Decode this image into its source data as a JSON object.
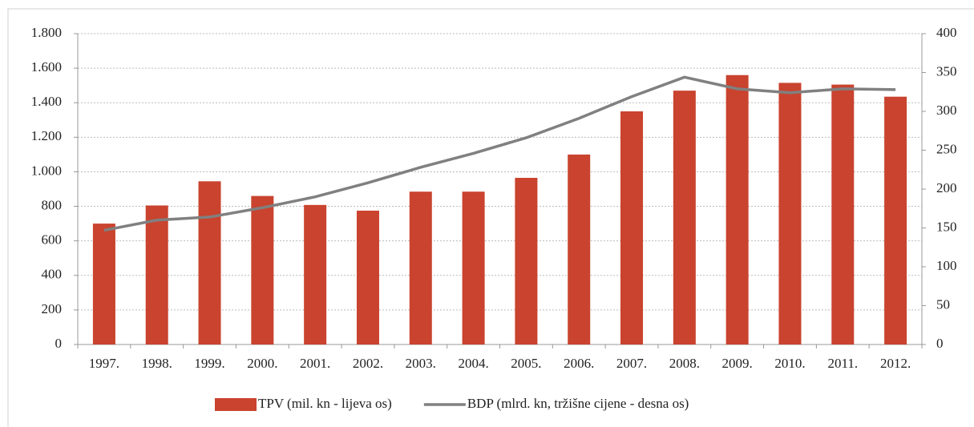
{
  "chart_data": {
    "type": "bar",
    "categories": [
      "1997.",
      "1998.",
      "1999.",
      "2000.",
      "2001.",
      "2002.",
      "2003.",
      "2004.",
      "2005.",
      "2006.",
      "2007.",
      "2008.",
      "2009.",
      "2010.",
      "2011.",
      "2012."
    ],
    "series": [
      {
        "name": "TPV (mil. kn - lijeva os)",
        "type": "bar",
        "color": "#c9432e",
        "axis": "y",
        "values": [
          700,
          805,
          945,
          860,
          808,
          775,
          885,
          885,
          965,
          1100,
          1350,
          1470,
          1560,
          1515,
          1505,
          1435
        ]
      },
      {
        "name": "BDP (mlrd. kn, tržišne cijene - desna os)",
        "type": "line",
        "color": "#808080",
        "axis": "y2",
        "values": [
          147,
          160,
          164,
          176,
          190,
          208,
          228,
          246,
          266,
          291,
          319,
          344,
          329,
          324,
          329,
          328
        ]
      }
    ],
    "ylim": [
      0,
      1800
    ],
    "yticks": [
      0,
      200,
      400,
      600,
      800,
      {
        "value": 1000,
        "label": "1.000"
      },
      {
        "value": 1200,
        "label": "1.200"
      },
      {
        "value": 1400,
        "label": "1.400"
      },
      {
        "value": 1600,
        "label": "1.600"
      },
      {
        "value": 1800,
        "label": "1.800"
      }
    ],
    "y2lim": [
      0,
      400
    ],
    "y2ticks": [
      0,
      50,
      100,
      150,
      200,
      250,
      300,
      350,
      400
    ],
    "grid": true,
    "legend": "bottom"
  }
}
